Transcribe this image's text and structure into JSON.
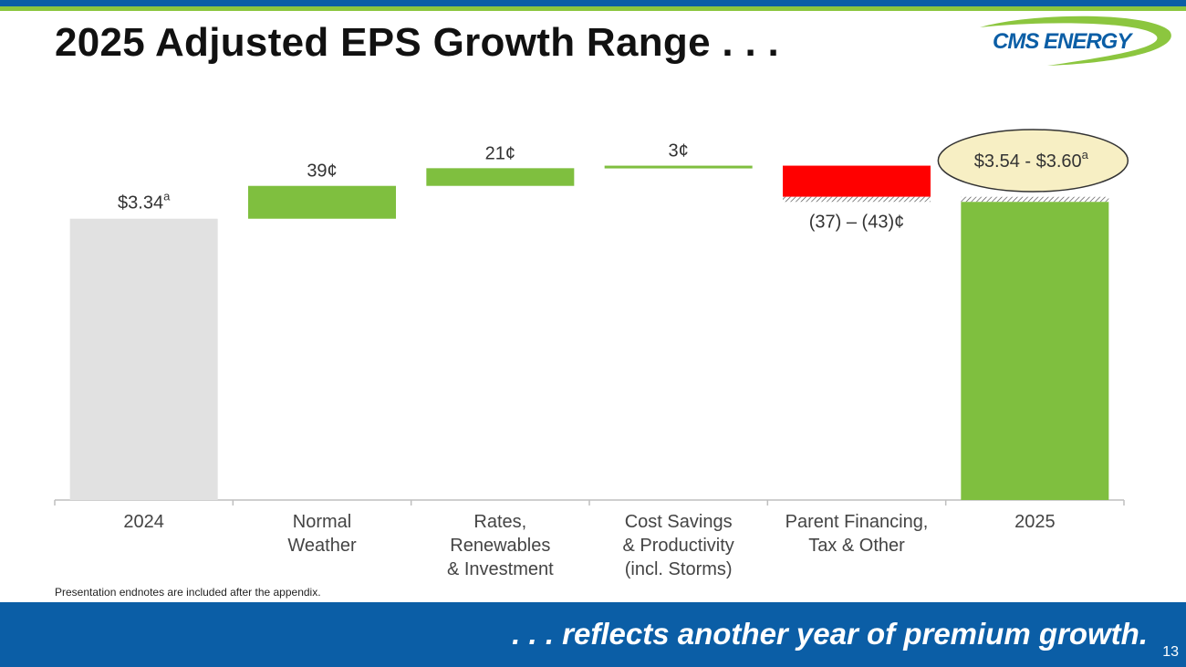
{
  "slide": {
    "title": "2025 Adjusted EPS Growth Range . . .",
    "logo_text": "CMS ENERGY",
    "endnote": "Presentation endnotes are included after the appendix.",
    "footer_text": ". . . reflects another year of premium growth.",
    "page_number": "13"
  },
  "colors": {
    "brand_blue": "#0b5ea6",
    "brand_green": "#8cc63f",
    "bar_green": "#7fbf3f",
    "bar_gray": "#e1e1e1",
    "bar_red": "#ff0000",
    "callout_fill": "#f7efc4"
  },
  "chart_data": {
    "type": "waterfall",
    "title": "",
    "xlabel": "",
    "ylabel": "",
    "units": "$ per share",
    "ylim": [
      0,
      3.7
    ],
    "categories": [
      [
        "2024"
      ],
      [
        "Normal",
        "Weather"
      ],
      [
        "Rates,",
        "Renewables",
        "& Investment"
      ],
      [
        "Cost Savings",
        "& Productivity",
        "(incl. Storms)"
      ],
      [
        "Parent Financing,",
        "Tax & Other"
      ],
      [
        "2025"
      ]
    ],
    "steps": [
      {
        "kind": "total",
        "start": 0,
        "end": 3.34,
        "label": "$3.34",
        "superscript": "a",
        "color": "#e1e1e1"
      },
      {
        "kind": "increase",
        "start": 3.34,
        "end": 3.73,
        "label": "39¢",
        "color": "#7fbf3f"
      },
      {
        "kind": "increase",
        "start": 3.73,
        "end": 3.94,
        "label": "21¢",
        "color": "#7fbf3f"
      },
      {
        "kind": "increase",
        "start": 3.94,
        "end": 3.97,
        "label": "3¢",
        "color": "#7fbf3f"
      },
      {
        "kind": "decrease",
        "start": 3.97,
        "end": 3.6,
        "range_end": 3.54,
        "label": "(37) – (43)¢",
        "color": "#ff0000"
      },
      {
        "kind": "total",
        "start": 0,
        "end": 3.57,
        "label": "$3.54 - $3.60",
        "superscript": "a",
        "color": "#7fbf3f"
      }
    ]
  }
}
